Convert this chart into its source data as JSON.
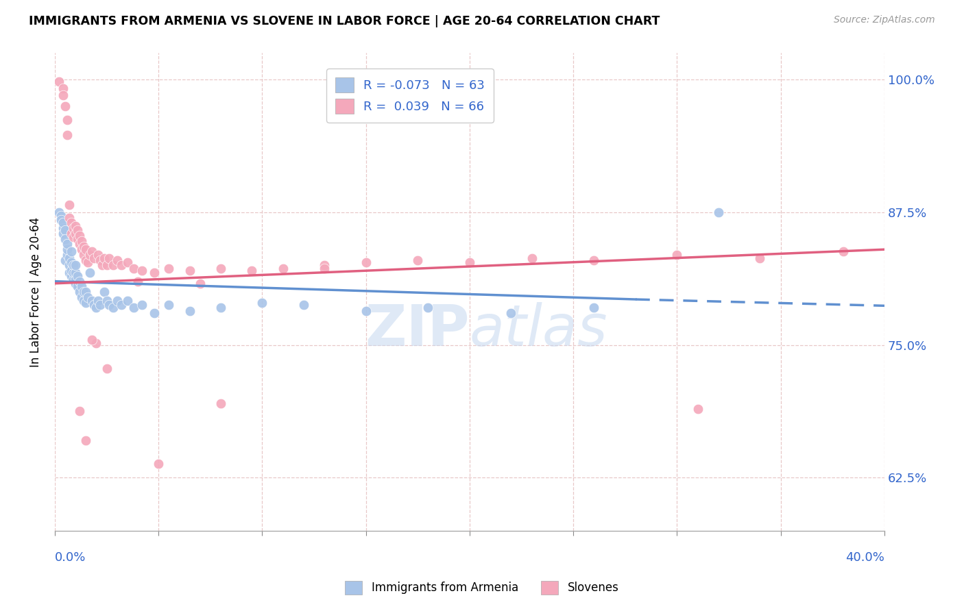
{
  "title": "IMMIGRANTS FROM ARMENIA VS SLOVENE IN LABOR FORCE | AGE 20-64 CORRELATION CHART",
  "source": "Source: ZipAtlas.com",
  "ylabel": "In Labor Force | Age 20-64",
  "xlim": [
    0.0,
    0.4
  ],
  "ylim": [
    0.575,
    1.025
  ],
  "yticks": [
    0.625,
    0.75,
    0.875,
    1.0
  ],
  "ytick_labels": [
    "62.5%",
    "75.0%",
    "87.5%",
    "100.0%"
  ],
  "xticks": [
    0.0,
    0.05,
    0.1,
    0.15,
    0.2,
    0.25,
    0.3,
    0.35,
    0.4
  ],
  "legend_R_blue": "R = -0.073",
  "legend_N_blue": "N = 63",
  "legend_R_pink": "R =  0.039",
  "legend_N_pink": "N = 66",
  "legend_label_blue": "Immigrants from Armenia",
  "legend_label_pink": "Slovenes",
  "color_blue": "#a8c4e8",
  "color_pink": "#f4a8bb",
  "color_trend_blue": "#6090d0",
  "color_trend_pink": "#e06080",
  "watermark": "ZIPatlas",
  "blue_x": [
    0.002,
    0.003,
    0.003,
    0.004,
    0.004,
    0.004,
    0.005,
    0.005,
    0.005,
    0.006,
    0.006,
    0.006,
    0.007,
    0.007,
    0.007,
    0.008,
    0.008,
    0.008,
    0.008,
    0.009,
    0.009,
    0.009,
    0.01,
    0.01,
    0.01,
    0.01,
    0.011,
    0.011,
    0.012,
    0.012,
    0.013,
    0.013,
    0.014,
    0.014,
    0.015,
    0.015,
    0.016,
    0.017,
    0.018,
    0.019,
    0.02,
    0.021,
    0.022,
    0.024,
    0.025,
    0.026,
    0.028,
    0.03,
    0.032,
    0.035,
    0.038,
    0.042,
    0.048,
    0.055,
    0.065,
    0.08,
    0.1,
    0.12,
    0.15,
    0.18,
    0.22,
    0.26,
    0.32
  ],
  "blue_y": [
    0.875,
    0.872,
    0.868,
    0.86,
    0.855,
    0.865,
    0.83,
    0.858,
    0.85,
    0.835,
    0.84,
    0.845,
    0.818,
    0.825,
    0.832,
    0.815,
    0.82,
    0.828,
    0.838,
    0.812,
    0.818,
    0.825,
    0.808,
    0.812,
    0.818,
    0.825,
    0.805,
    0.815,
    0.8,
    0.81,
    0.795,
    0.805,
    0.792,
    0.8,
    0.79,
    0.8,
    0.795,
    0.818,
    0.792,
    0.788,
    0.785,
    0.792,
    0.788,
    0.8,
    0.792,
    0.788,
    0.785,
    0.792,
    0.788,
    0.792,
    0.785,
    0.788,
    0.78,
    0.788,
    0.782,
    0.785,
    0.79,
    0.788,
    0.782,
    0.785,
    0.78,
    0.785,
    0.875
  ],
  "pink_x": [
    0.002,
    0.004,
    0.004,
    0.005,
    0.006,
    0.006,
    0.007,
    0.007,
    0.008,
    0.008,
    0.009,
    0.009,
    0.01,
    0.01,
    0.011,
    0.011,
    0.012,
    0.012,
    0.013,
    0.013,
    0.014,
    0.014,
    0.015,
    0.015,
    0.016,
    0.017,
    0.018,
    0.019,
    0.02,
    0.021,
    0.022,
    0.023,
    0.024,
    0.025,
    0.026,
    0.028,
    0.03,
    0.032,
    0.035,
    0.038,
    0.042,
    0.048,
    0.055,
    0.065,
    0.08,
    0.095,
    0.11,
    0.13,
    0.15,
    0.175,
    0.2,
    0.23,
    0.26,
    0.3,
    0.34,
    0.38,
    0.012,
    0.015,
    0.018,
    0.025,
    0.04,
    0.05,
    0.07,
    0.08,
    0.13,
    0.31
  ],
  "pink_y": [
    0.998,
    0.992,
    0.985,
    0.975,
    0.962,
    0.948,
    0.882,
    0.87,
    0.865,
    0.855,
    0.86,
    0.852,
    0.855,
    0.862,
    0.85,
    0.858,
    0.845,
    0.853,
    0.84,
    0.848,
    0.835,
    0.843,
    0.83,
    0.84,
    0.828,
    0.835,
    0.838,
    0.832,
    0.752,
    0.835,
    0.83,
    0.825,
    0.832,
    0.825,
    0.832,
    0.825,
    0.83,
    0.825,
    0.828,
    0.822,
    0.82,
    0.818,
    0.822,
    0.82,
    0.822,
    0.82,
    0.822,
    0.825,
    0.828,
    0.83,
    0.828,
    0.832,
    0.83,
    0.835,
    0.832,
    0.838,
    0.688,
    0.66,
    0.755,
    0.728,
    0.81,
    0.638,
    0.808,
    0.695,
    0.822,
    0.69
  ]
}
